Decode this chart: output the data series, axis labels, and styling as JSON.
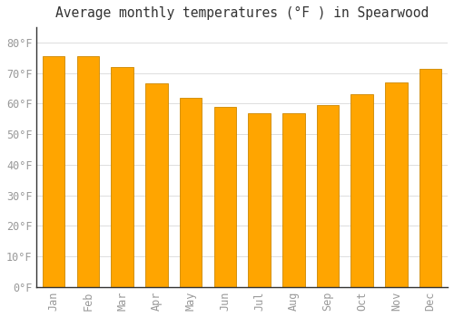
{
  "title": "Average monthly temperatures (°F ) in Spearwood",
  "months": [
    "Jan",
    "Feb",
    "Mar",
    "Apr",
    "May",
    "Jun",
    "Jul",
    "Aug",
    "Sep",
    "Oct",
    "Nov",
    "Dec"
  ],
  "values": [
    75.5,
    75.5,
    72,
    66.5,
    62,
    59,
    57,
    57,
    59.5,
    63,
    67,
    71.5
  ],
  "bar_color": "#FFA500",
  "bar_edge_color": "#cc8800",
  "background_color": "#ffffff",
  "plot_bg_color": "#ffffff",
  "grid_color": "#dddddd",
  "yticks": [
    0,
    10,
    20,
    30,
    40,
    50,
    60,
    70,
    80
  ],
  "ytick_labels": [
    "0°F",
    "10°F",
    "20°F",
    "30°F",
    "40°F",
    "50°F",
    "60°F",
    "70°F",
    "80°F"
  ],
  "ylim": [
    0,
    85
  ],
  "title_fontsize": 10.5,
  "tick_fontsize": 8.5,
  "tick_color": "#999999",
  "bar_width": 0.65,
  "left_spine_color": "#333333"
}
